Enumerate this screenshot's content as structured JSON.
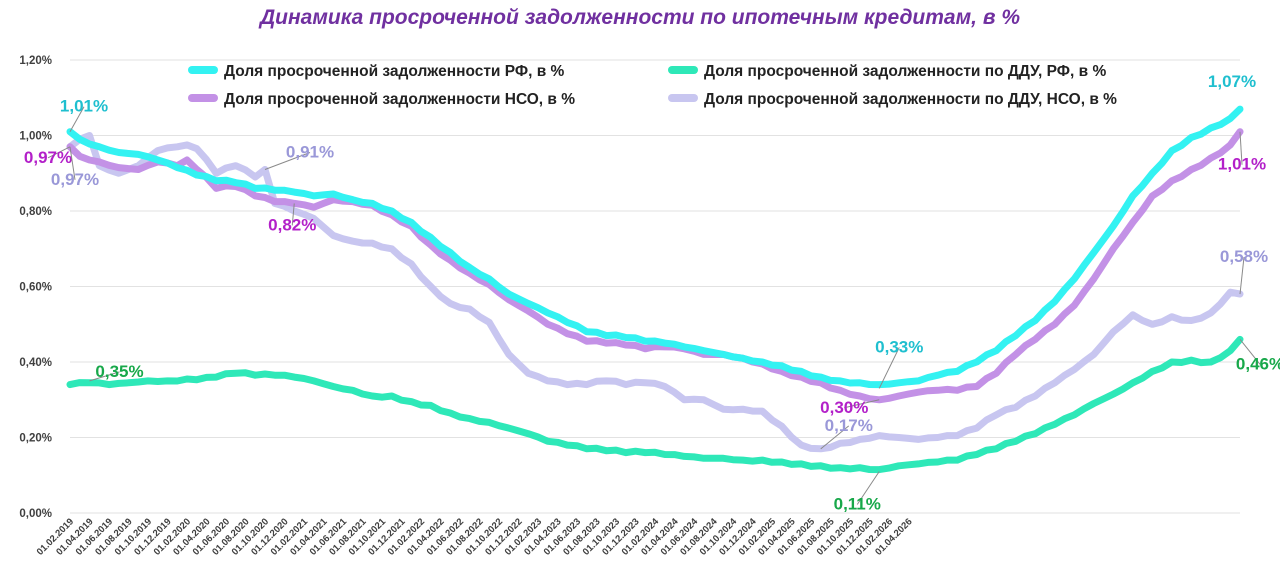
{
  "chart_data": {
    "type": "line",
    "title": "Динамика просроченной задолженности по ипотечным кредитам, в %",
    "xlabel": "",
    "ylabel": "",
    "ylim": [
      0,
      1.2
    ],
    "yticks": [
      "0,00%",
      "0,20%",
      "0,40%",
      "0,60%",
      "0,80%",
      "1,00%",
      "1,20%"
    ],
    "grid": true,
    "legend_position": "top",
    "x_start": "01.02.2019",
    "x_end": "01.05.2026",
    "x_step_months": 1,
    "x_tick_labels": [
      "01.02.2019",
      "01.04.2019",
      "01.06.2019",
      "01.08.2019",
      "01.10.2019",
      "01.12.2019",
      "01.02.2020",
      "01.04.2020",
      "01.06.2020",
      "01.08.2020",
      "01.10.2020",
      "01.12.2020",
      "01.02.2021",
      "01.04.2021",
      "01.06.2021",
      "01.08.2021",
      "01.10.2021",
      "01.12.2021",
      "01.02.2022",
      "01.04.2022",
      "01.06.2022",
      "01.08.2022",
      "01.10.2022",
      "01.12.2022",
      "01.02.2023",
      "01.04.2023",
      "01.06.2023",
      "01.08.2023",
      "01.10.2023",
      "01.12.2023",
      "01.02.2024",
      "01.04.2024",
      "01.06.2024",
      "01.08.2024",
      "01.10.2024",
      "01.12.2024",
      "01.02.2025",
      "01.04.2025",
      "01.06.2025",
      "01.08.2025",
      "01.10.2025",
      "01.12.2025",
      "01.02.2026",
      "01.04.2026"
    ],
    "series": [
      {
        "name": "Доля просроченной задолженности РФ, в %",
        "color": "#33f2f2",
        "keypoints": [
          [
            0,
            1.01
          ],
          [
            1,
            0.99
          ],
          [
            3,
            0.97
          ],
          [
            5,
            0.955
          ],
          [
            7,
            0.95
          ],
          [
            9,
            0.935
          ],
          [
            11,
            0.915
          ],
          [
            13,
            0.895
          ],
          [
            15,
            0.88
          ],
          [
            17,
            0.875
          ],
          [
            19,
            0.86
          ],
          [
            21,
            0.855
          ],
          [
            23,
            0.85
          ],
          [
            25,
            0.84
          ],
          [
            27,
            0.845
          ],
          [
            29,
            0.83
          ],
          [
            31,
            0.82
          ],
          [
            33,
            0.8
          ],
          [
            35,
            0.77
          ],
          [
            37,
            0.73
          ],
          [
            39,
            0.69
          ],
          [
            41,
            0.65
          ],
          [
            43,
            0.62
          ],
          [
            45,
            0.58
          ],
          [
            47,
            0.555
          ],
          [
            49,
            0.53
          ],
          [
            51,
            0.505
          ],
          [
            53,
            0.48
          ],
          [
            55,
            0.47
          ],
          [
            57,
            0.465
          ],
          [
            59,
            0.455
          ],
          [
            61,
            0.45
          ],
          [
            63,
            0.44
          ],
          [
            65,
            0.43
          ],
          [
            67,
            0.42
          ],
          [
            69,
            0.41
          ],
          [
            71,
            0.4
          ],
          [
            73,
            0.39
          ],
          [
            75,
            0.375
          ],
          [
            77,
            0.36
          ],
          [
            79,
            0.35
          ],
          [
            81,
            0.345
          ],
          [
            83,
            0.34
          ],
          [
            85,
            0.345
          ],
          [
            87,
            0.35
          ],
          [
            89,
            0.365
          ],
          [
            91,
            0.375
          ],
          [
            93,
            0.4
          ],
          [
            95,
            0.43
          ],
          [
            97,
            0.47
          ],
          [
            99,
            0.51
          ],
          [
            101,
            0.56
          ],
          [
            103,
            0.62
          ],
          [
            105,
            0.69
          ],
          [
            107,
            0.76
          ],
          [
            109,
            0.84
          ],
          [
            111,
            0.9
          ],
          [
            113,
            0.96
          ],
          [
            115,
            0.995
          ],
          [
            117,
            1.02
          ],
          [
            119,
            1.045
          ],
          [
            120,
            1.07
          ]
        ],
        "labels": [
          {
            "index": 0,
            "value": 1.01,
            "text": "1,01%"
          },
          {
            "index": 120,
            "value": 1.07,
            "text": "1,07%"
          },
          {
            "index": 83,
            "value": 0.33,
            "text": "0,33%"
          }
        ]
      },
      {
        "name": "Доля просроченной задолженности НСО, в %",
        "color": "#c391e6",
        "keypoints": [
          [
            0,
            0.97
          ],
          [
            1,
            0.945
          ],
          [
            3,
            0.93
          ],
          [
            5,
            0.915
          ],
          [
            7,
            0.91
          ],
          [
            9,
            0.93
          ],
          [
            11,
            0.92
          ],
          [
            12,
            0.935
          ],
          [
            13,
            0.91
          ],
          [
            15,
            0.86
          ],
          [
            17,
            0.865
          ],
          [
            19,
            0.84
          ],
          [
            21,
            0.825
          ],
          [
            23,
            0.82
          ],
          [
            25,
            0.81
          ],
          [
            27,
            0.83
          ],
          [
            29,
            0.825
          ],
          [
            31,
            0.815
          ],
          [
            33,
            0.79
          ],
          [
            35,
            0.76
          ],
          [
            37,
            0.71
          ],
          [
            39,
            0.67
          ],
          [
            41,
            0.635
          ],
          [
            43,
            0.605
          ],
          [
            45,
            0.565
          ],
          [
            47,
            0.535
          ],
          [
            49,
            0.5
          ],
          [
            51,
            0.475
          ],
          [
            53,
            0.455
          ],
          [
            55,
            0.45
          ],
          [
            57,
            0.445
          ],
          [
            59,
            0.435
          ],
          [
            61,
            0.44
          ],
          [
            63,
            0.435
          ],
          [
            65,
            0.42
          ],
          [
            67,
            0.42
          ],
          [
            69,
            0.41
          ],
          [
            71,
            0.395
          ],
          [
            73,
            0.375
          ],
          [
            75,
            0.36
          ],
          [
            77,
            0.345
          ],
          [
            79,
            0.325
          ],
          [
            81,
            0.31
          ],
          [
            83,
            0.3
          ],
          [
            85,
            0.31
          ],
          [
            87,
            0.32
          ],
          [
            89,
            0.325
          ],
          [
            91,
            0.325
          ],
          [
            93,
            0.335
          ],
          [
            95,
            0.37
          ],
          [
            97,
            0.42
          ],
          [
            99,
            0.46
          ],
          [
            101,
            0.5
          ],
          [
            103,
            0.55
          ],
          [
            105,
            0.62
          ],
          [
            107,
            0.7
          ],
          [
            109,
            0.77
          ],
          [
            111,
            0.84
          ],
          [
            113,
            0.88
          ],
          [
            115,
            0.91
          ],
          [
            117,
            0.94
          ],
          [
            119,
            0.975
          ],
          [
            120,
            1.01
          ]
        ],
        "labels": [
          {
            "index": 0,
            "value": 0.97,
            "text": "0,97%"
          },
          {
            "index": 23,
            "value": 0.82,
            "text": "0,82%"
          },
          {
            "index": 83,
            "value": 0.3,
            "text": "0,30%"
          },
          {
            "index": 120,
            "value": 1.01,
            "text": "1,01%"
          }
        ]
      },
      {
        "name": "Доля просроченной задолженности по ДДУ, РФ, в %",
        "color": "#2ee8b8",
        "keypoints": [
          [
            0,
            0.34
          ],
          [
            2,
            0.345
          ],
          [
            4,
            0.34
          ],
          [
            6,
            0.345
          ],
          [
            8,
            0.35
          ],
          [
            10,
            0.35
          ],
          [
            12,
            0.355
          ],
          [
            15,
            0.36
          ],
          [
            17,
            0.37
          ],
          [
            19,
            0.365
          ],
          [
            21,
            0.365
          ],
          [
            23,
            0.36
          ],
          [
            25,
            0.35
          ],
          [
            27,
            0.335
          ],
          [
            29,
            0.325
          ],
          [
            31,
            0.31
          ],
          [
            33,
            0.31
          ],
          [
            35,
            0.295
          ],
          [
            37,
            0.285
          ],
          [
            39,
            0.265
          ],
          [
            41,
            0.25
          ],
          [
            43,
            0.24
          ],
          [
            45,
            0.225
          ],
          [
            47,
            0.21
          ],
          [
            49,
            0.19
          ],
          [
            51,
            0.18
          ],
          [
            53,
            0.17
          ],
          [
            55,
            0.165
          ],
          [
            57,
            0.16
          ],
          [
            59,
            0.16
          ],
          [
            61,
            0.155
          ],
          [
            63,
            0.15
          ],
          [
            65,
            0.145
          ],
          [
            67,
            0.145
          ],
          [
            69,
            0.14
          ],
          [
            71,
            0.14
          ],
          [
            73,
            0.135
          ],
          [
            75,
            0.13
          ],
          [
            77,
            0.125
          ],
          [
            79,
            0.12
          ],
          [
            81,
            0.12
          ],
          [
            83,
            0.115
          ],
          [
            85,
            0.125
          ],
          [
            87,
            0.13
          ],
          [
            89,
            0.135
          ],
          [
            91,
            0.14
          ],
          [
            93,
            0.155
          ],
          [
            95,
            0.17
          ],
          [
            97,
            0.19
          ],
          [
            99,
            0.21
          ],
          [
            101,
            0.235
          ],
          [
            103,
            0.26
          ],
          [
            105,
            0.29
          ],
          [
            107,
            0.315
          ],
          [
            109,
            0.345
          ],
          [
            111,
            0.375
          ],
          [
            113,
            0.4
          ],
          [
            115,
            0.405
          ],
          [
            117,
            0.4
          ],
          [
            119,
            0.43
          ],
          [
            120,
            0.46
          ]
        ],
        "labels": [
          {
            "index": 2,
            "value": 0.35,
            "text": "0,35%"
          },
          {
            "index": 83,
            "value": 0.11,
            "text": "0,11%"
          },
          {
            "index": 120,
            "value": 0.46,
            "text": "0,46%"
          }
        ]
      },
      {
        "name": "Доля просроченной задолженности по ДДУ,  НСО, в %",
        "color": "#c8c6f0",
        "keypoints": [
          [
            0,
            0.97
          ],
          [
            1,
            0.99
          ],
          [
            2,
            1.0
          ],
          [
            3,
            0.92
          ],
          [
            5,
            0.9
          ],
          [
            7,
            0.92
          ],
          [
            9,
            0.96
          ],
          [
            11,
            0.97
          ],
          [
            12,
            0.975
          ],
          [
            13,
            0.965
          ],
          [
            15,
            0.9
          ],
          [
            17,
            0.92
          ],
          [
            19,
            0.89
          ],
          [
            20,
            0.91
          ],
          [
            21,
            0.82
          ],
          [
            23,
            0.8
          ],
          [
            25,
            0.78
          ],
          [
            27,
            0.735
          ],
          [
            29,
            0.72
          ],
          [
            31,
            0.715
          ],
          [
            33,
            0.7
          ],
          [
            35,
            0.66
          ],
          [
            37,
            0.6
          ],
          [
            39,
            0.555
          ],
          [
            41,
            0.54
          ],
          [
            43,
            0.505
          ],
          [
            45,
            0.42
          ],
          [
            47,
            0.37
          ],
          [
            49,
            0.35
          ],
          [
            51,
            0.34
          ],
          [
            53,
            0.34
          ],
          [
            55,
            0.35
          ],
          [
            57,
            0.34
          ],
          [
            59,
            0.345
          ],
          [
            61,
            0.335
          ],
          [
            63,
            0.3
          ],
          [
            65,
            0.3
          ],
          [
            67,
            0.275
          ],
          [
            69,
            0.275
          ],
          [
            71,
            0.27
          ],
          [
            73,
            0.23
          ],
          [
            75,
            0.18
          ],
          [
            77,
            0.17
          ],
          [
            79,
            0.185
          ],
          [
            81,
            0.195
          ],
          [
            83,
            0.205
          ],
          [
            85,
            0.2
          ],
          [
            87,
            0.195
          ],
          [
            89,
            0.2
          ],
          [
            91,
            0.205
          ],
          [
            93,
            0.225
          ],
          [
            95,
            0.26
          ],
          [
            97,
            0.28
          ],
          [
            99,
            0.31
          ],
          [
            101,
            0.345
          ],
          [
            103,
            0.38
          ],
          [
            105,
            0.42
          ],
          [
            107,
            0.48
          ],
          [
            109,
            0.525
          ],
          [
            111,
            0.5
          ],
          [
            113,
            0.52
          ],
          [
            115,
            0.51
          ],
          [
            117,
            0.53
          ],
          [
            119,
            0.585
          ],
          [
            120,
            0.58
          ]
        ],
        "labels": [
          {
            "index": 0,
            "value": 0.97,
            "text": "0,97%"
          },
          {
            "index": 20,
            "value": 0.91,
            "text": "0,91%"
          },
          {
            "index": 77,
            "value": 0.17,
            "text": "0,17%"
          },
          {
            "index": 120,
            "value": 0.58,
            "text": "0,58%"
          }
        ]
      }
    ],
    "annotation_colors": {
      "Доля просроченной задолженности РФ, в %": "#1fbfcf",
      "Доля просроченной задолженности НСО, в %": "#b320c9",
      "Доля просроченной задолженности по ДДУ, РФ, в %": "#18a84a",
      "Доля просроченной задолженности по ДДУ,  НСО, в %": "#9a98d8"
    }
  }
}
